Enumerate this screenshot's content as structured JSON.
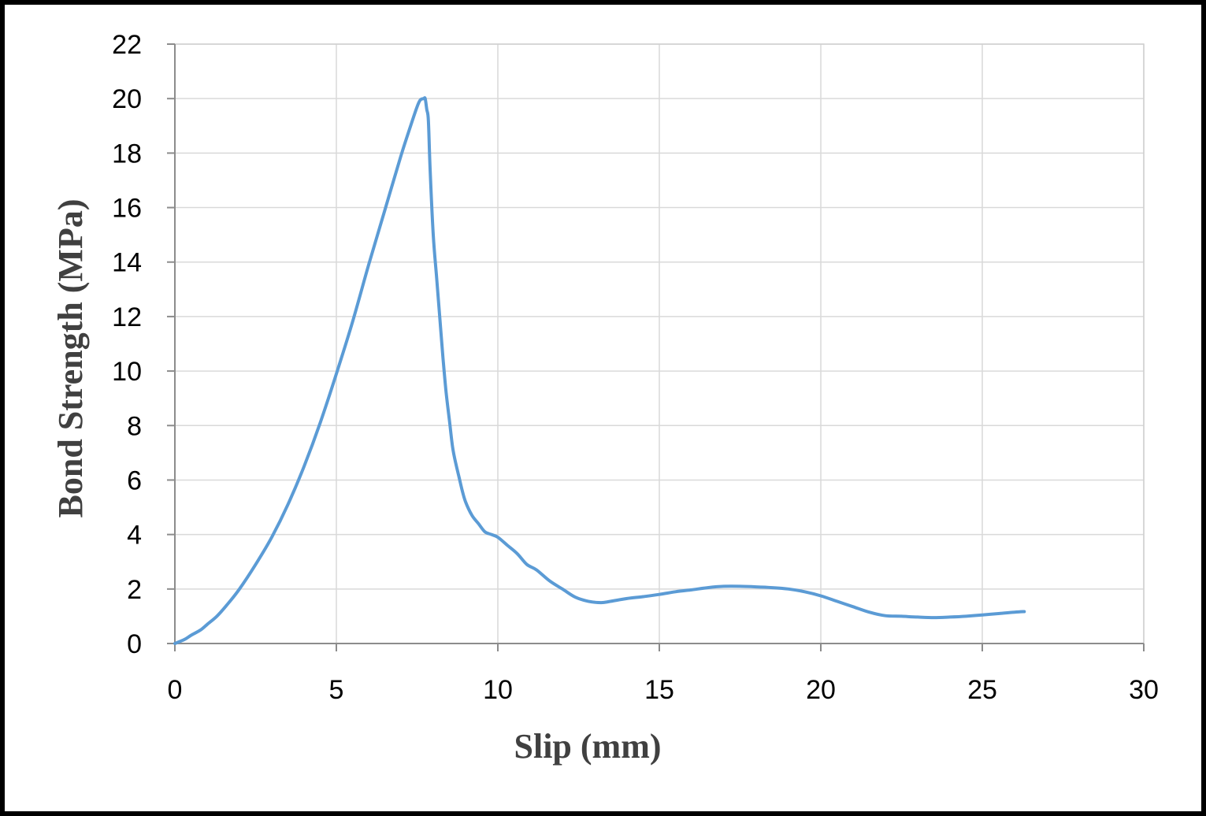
{
  "chart_data": {
    "type": "line",
    "title": "",
    "xlabel": "Slip (mm)",
    "ylabel": "Bond Strength (MPa)",
    "xlim": [
      0,
      30
    ],
    "ylim": [
      0,
      22
    ],
    "x_ticks": [
      0,
      5,
      10,
      15,
      20,
      25,
      30
    ],
    "y_ticks": [
      0,
      2,
      4,
      6,
      8,
      10,
      12,
      14,
      16,
      18,
      20,
      22
    ],
    "grid": true,
    "legend": "none",
    "series": [
      {
        "color": "#5b9bd5",
        "x": [
          0,
          0.3,
          0.5,
          0.8,
          1.0,
          1.3,
          1.6,
          2.0,
          2.5,
          3.0,
          3.5,
          4.0,
          4.5,
          5.0,
          5.5,
          6.0,
          6.5,
          7.0,
          7.3,
          7.5,
          7.6,
          7.7,
          7.75,
          7.8,
          7.85,
          7.9,
          8.0,
          8.1,
          8.2,
          8.3,
          8.4,
          8.5,
          8.6,
          8.7,
          8.8,
          8.9,
          9.0,
          9.2,
          9.4,
          9.6,
          9.8,
          10.0,
          10.3,
          10.6,
          10.9,
          11.2,
          11.6,
          12.0,
          12.4,
          12.8,
          13.2,
          13.5,
          14.0,
          14.5,
          15.0,
          15.5,
          16.0,
          16.5,
          17.0,
          17.5,
          18.0,
          18.5,
          19.0,
          19.5,
          20.0,
          20.5,
          21.0,
          21.5,
          22.0,
          22.5,
          23.0,
          23.5,
          24.0,
          24.5,
          25.0,
          25.5,
          26.0,
          26.3
        ],
        "y": [
          0,
          0.15,
          0.3,
          0.5,
          0.7,
          1.0,
          1.4,
          2.0,
          2.9,
          3.9,
          5.1,
          6.5,
          8.1,
          9.9,
          11.8,
          13.9,
          15.9,
          17.9,
          19.0,
          19.7,
          19.95,
          20.0,
          20.0,
          19.6,
          19.2,
          17.5,
          15.0,
          13.5,
          12.0,
          10.5,
          9.2,
          8.2,
          7.2,
          6.6,
          6.1,
          5.6,
          5.2,
          4.7,
          4.4,
          4.1,
          4.0,
          3.9,
          3.6,
          3.3,
          2.9,
          2.7,
          2.3,
          2.0,
          1.7,
          1.55,
          1.5,
          1.55,
          1.65,
          1.72,
          1.8,
          1.9,
          1.97,
          2.05,
          2.1,
          2.1,
          2.08,
          2.05,
          2.0,
          1.9,
          1.75,
          1.55,
          1.35,
          1.15,
          1.02,
          1.0,
          0.97,
          0.95,
          0.97,
          1.0,
          1.05,
          1.1,
          1.15,
          1.17
        ]
      }
    ]
  }
}
